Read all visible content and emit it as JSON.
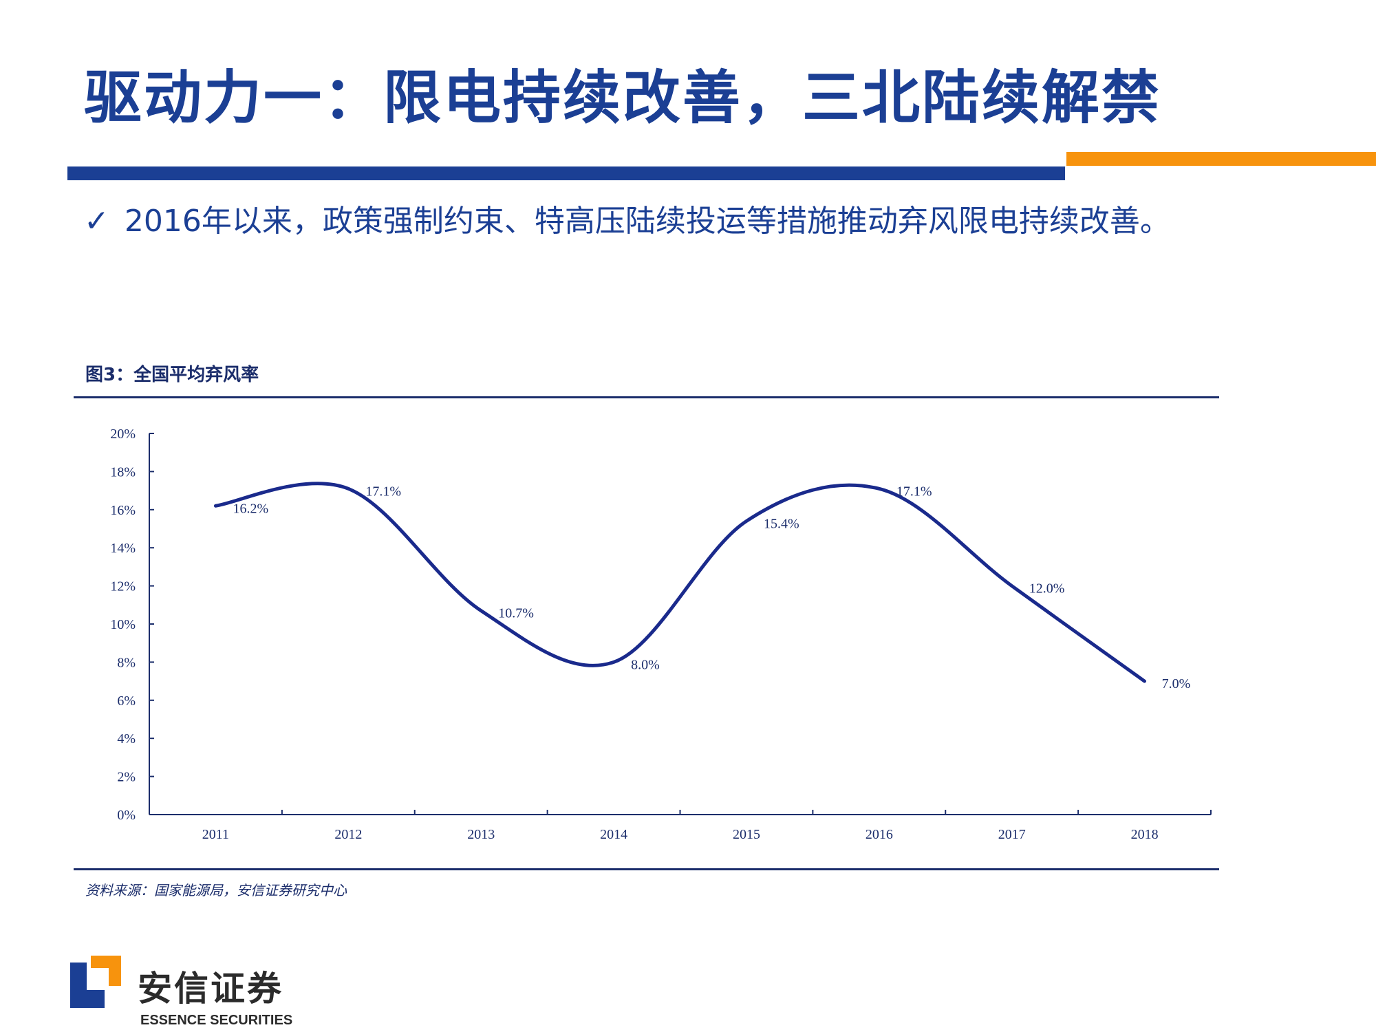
{
  "slide": {
    "title": "驱动力一：限电持续改善，三北陆续解禁",
    "bullet_mark": "✓",
    "bullet_text": "2016年以来，政策强制约束、特高压陆续投运等措施推动弃风限电持续改善。"
  },
  "figure": {
    "caption": "图3：全国平均弃风率",
    "source": "资料来源：国家能源局，安信证券研究中心"
  },
  "chart_data": {
    "type": "line",
    "title": "",
    "xlabel": "",
    "ylabel": "",
    "categories": [
      "2011",
      "2012",
      "2013",
      "2014",
      "2015",
      "2016",
      "2017",
      "2018"
    ],
    "series": [
      {
        "values": [
          16.2,
          17.1,
          10.7,
          8.0,
          15.4,
          17.1,
          12.0,
          7.0
        ],
        "color": "#1a2a8c",
        "smooth": true
      }
    ],
    "data_labels": [
      "16.2%",
      "17.1%",
      "10.7%",
      "8.0%",
      "15.4%",
      "17.1%",
      "12.0%",
      "7.0%"
    ],
    "ylim": [
      0,
      20
    ],
    "yticks": [
      "0%",
      "2%",
      "4%",
      "6%",
      "8%",
      "10%",
      "12%",
      "14%",
      "16%",
      "18%",
      "20%"
    ],
    "grid": false,
    "legend": "none"
  },
  "brand": {
    "name_cn": "安信证券",
    "name_en": "ESSENCE SECURITIES",
    "icon": "essence-logo-icon",
    "primary_color": "#1b3f94",
    "accent_color": "#f7930d"
  }
}
